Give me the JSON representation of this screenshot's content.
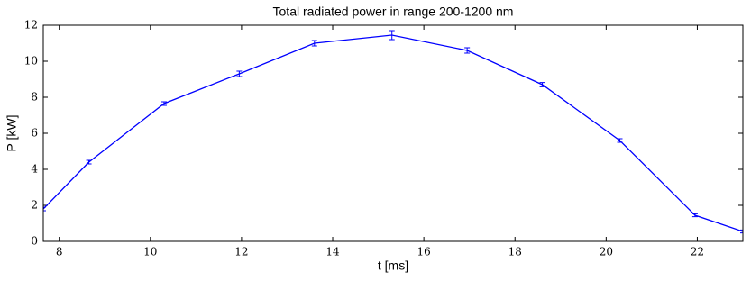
{
  "chart_data": {
    "type": "line",
    "title": "Total radiated power in range 200-1200 nm",
    "x_label": "t [ms]",
    "y_label": "P [kW]",
    "series": [
      {
        "color": "#0000ff",
        "x": [
          7.65,
          8.65,
          10.3,
          11.95,
          13.6,
          15.3,
          16.95,
          18.6,
          20.3,
          21.95,
          23.0
        ],
        "values": [
          1.8,
          4.4,
          7.65,
          9.3,
          11.0,
          11.45,
          10.6,
          8.7,
          5.6,
          1.45,
          0.55
        ],
        "errors": [
          0.1,
          0.1,
          0.1,
          0.15,
          0.15,
          0.25,
          0.15,
          0.12,
          0.1,
          0.08,
          0.08
        ]
      }
    ],
    "xlim": [
      7.65,
      23.0
    ],
    "xticks": [
      8,
      10,
      12,
      14,
      16,
      18,
      20,
      22
    ],
    "ylim": [
      0,
      12
    ],
    "yticks": [
      0,
      2,
      4,
      6,
      8,
      10,
      12
    ]
  }
}
